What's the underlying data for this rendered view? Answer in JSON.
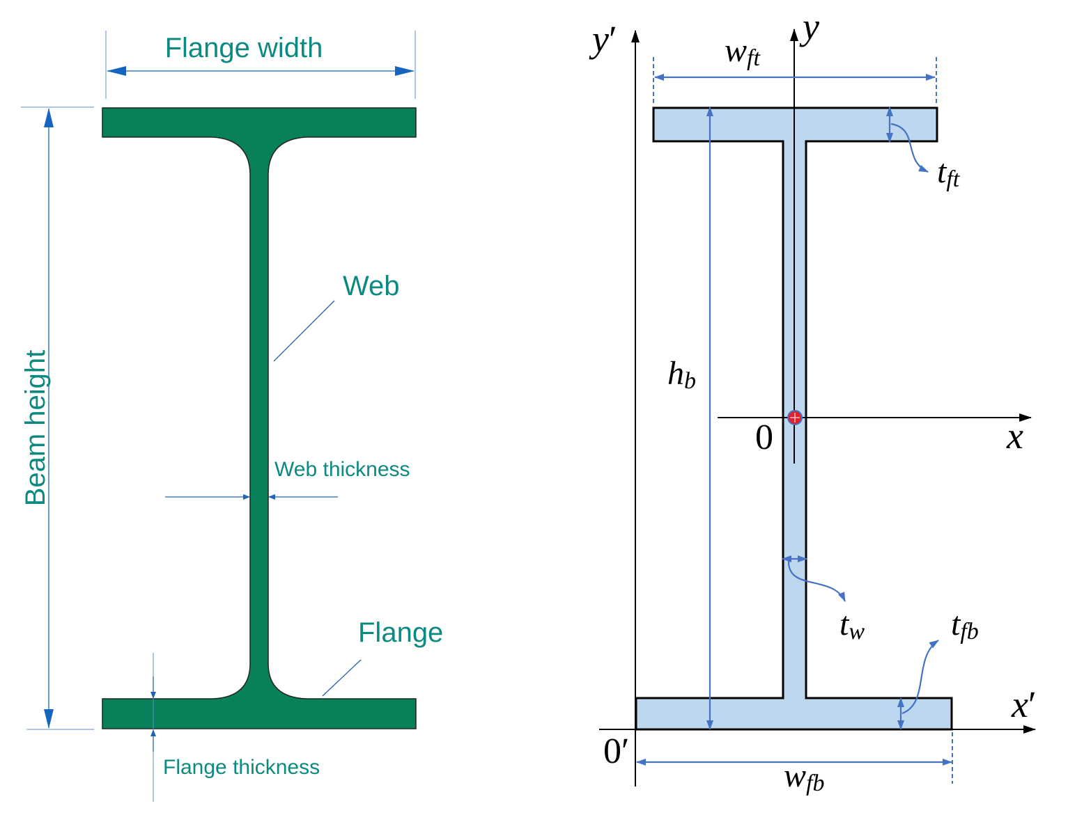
{
  "left_panel": {
    "flange_width_label": "Flange width",
    "web_label": "Web",
    "web_thickness_label": "Web thickness",
    "flange_label": "Flange",
    "flange_thickness_label": "Flange thickness",
    "beam_height_label": "Beam height",
    "beam_fill_color": "#08805a",
    "label_color": "#0d8a80"
  },
  "right_panel": {
    "y_prime_axis": {
      "base": "y",
      "prime": "′"
    },
    "y_axis": {
      "base": "y"
    },
    "x_axis": {
      "base": "x"
    },
    "x_prime_axis": {
      "base": "x",
      "prime": "′"
    },
    "origin_label": "0",
    "origin_prime_label": "0′",
    "w_ft": {
      "base": "w",
      "sub": "ft"
    },
    "t_ft": {
      "base": "t",
      "sub": "ft"
    },
    "h_b": {
      "base": "h",
      "sub": "b"
    },
    "t_w": {
      "base": "t",
      "sub": "w"
    },
    "t_fb": {
      "base": "t",
      "sub": "fb"
    },
    "w_fb": {
      "base": "w",
      "sub": "fb"
    },
    "section_fill_color": "#bdd7ee",
    "dimension_color": "#4472c4",
    "centroid_color": "#e0202a"
  }
}
